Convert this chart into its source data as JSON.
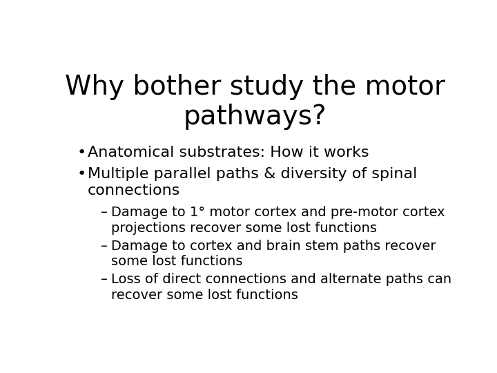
{
  "background_color": "#ffffff",
  "title_line1": "Why bother study the motor",
  "title_line2": "pathways?",
  "title_fontsize": 28,
  "title_color": "#000000",
  "bullet_fontsize": 16,
  "sub_bullet_fontsize": 14,
  "text_color": "#000000",
  "bullets": [
    {
      "type": "bullet",
      "text": "Anatomical substrates: How it works",
      "lines": 1
    },
    {
      "type": "bullet",
      "text": "Multiple parallel paths & diversity of spinal\nconnections",
      "lines": 2
    },
    {
      "type": "sub_bullet",
      "text": "Damage to 1° motor cortex and pre-motor cortex\nprojections recover some lost functions",
      "lines": 2
    },
    {
      "type": "sub_bullet",
      "text": "Damage to cortex and brain stem paths recover\nsome lost functions",
      "lines": 2
    },
    {
      "type": "sub_bullet",
      "text": "Loss of direct connections and alternate paths can\nrecover some lost functions",
      "lines": 2
    }
  ]
}
